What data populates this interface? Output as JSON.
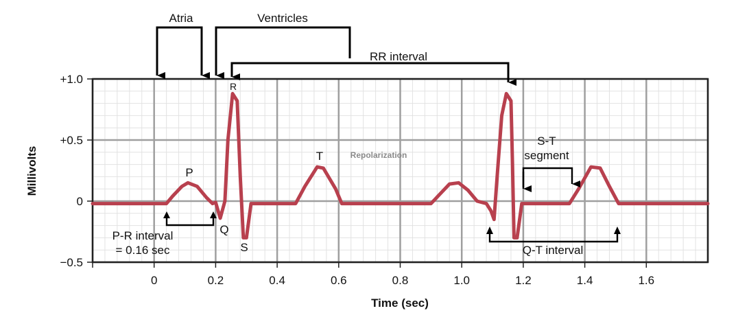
{
  "chart_data": {
    "type": "line",
    "xlabel": "Time (sec)",
    "ylabel": "Millivolts",
    "xlim": [
      -0.2,
      1.8
    ],
    "ylim": [
      -0.5,
      1.0
    ],
    "x_ticks": [
      "0",
      "0.2",
      "0.4",
      "0.6",
      "0.8",
      "1.0",
      "1.2",
      "1.4",
      "1.6"
    ],
    "y_ticks": [
      "+1.0",
      "+0.5",
      "0",
      "−0.5"
    ],
    "series": [
      {
        "color": "#b8404e",
        "points": [
          [
            -0.2,
            -0.02
          ],
          [
            0.04,
            -0.02
          ],
          [
            0.06,
            0.04
          ],
          [
            0.09,
            0.12
          ],
          [
            0.11,
            0.15
          ],
          [
            0.14,
            0.12
          ],
          [
            0.17,
            0.03
          ],
          [
            0.19,
            -0.02
          ],
          [
            0.2,
            -0.01
          ],
          [
            0.215,
            -0.14
          ],
          [
            0.23,
            0.0
          ],
          [
            0.24,
            0.5
          ],
          [
            0.255,
            0.88
          ],
          [
            0.27,
            0.82
          ],
          [
            0.28,
            0.2
          ],
          [
            0.29,
            -0.3
          ],
          [
            0.3,
            -0.3
          ],
          [
            0.315,
            -0.02
          ],
          [
            0.46,
            -0.02
          ],
          [
            0.49,
            0.12
          ],
          [
            0.53,
            0.28
          ],
          [
            0.55,
            0.27
          ],
          [
            0.59,
            0.1
          ],
          [
            0.61,
            -0.02
          ],
          [
            0.9,
            -0.02
          ],
          [
            0.93,
            0.06
          ],
          [
            0.96,
            0.14
          ],
          [
            0.99,
            0.15
          ],
          [
            1.02,
            0.09
          ],
          [
            1.05,
            0.0
          ],
          [
            1.08,
            -0.02
          ],
          [
            1.095,
            -0.08
          ],
          [
            1.105,
            -0.15
          ],
          [
            1.115,
            0.2
          ],
          [
            1.13,
            0.7
          ],
          [
            1.145,
            0.88
          ],
          [
            1.16,
            0.82
          ],
          [
            1.165,
            0.3
          ],
          [
            1.17,
            -0.3
          ],
          [
            1.18,
            -0.3
          ],
          [
            1.195,
            -0.02
          ],
          [
            1.35,
            -0.02
          ],
          [
            1.38,
            0.1
          ],
          [
            1.42,
            0.28
          ],
          [
            1.45,
            0.27
          ],
          [
            1.48,
            0.12
          ],
          [
            1.51,
            -0.02
          ],
          [
            1.8,
            -0.02
          ]
        ]
      }
    ],
    "grid": true
  },
  "labels": {
    "atria": "Atria",
    "ventricles": "Ventricles",
    "rr_interval": "RR interval",
    "r": "R",
    "t": "T",
    "p": "P",
    "q": "Q",
    "s": "S",
    "repolarization": "Repolarization",
    "st_line1": "S-T",
    "st_line2": "segment",
    "pr_line1": "P-R interval",
    "pr_line2": "= 0.16 sec",
    "qt_interval": "Q-T interval"
  }
}
